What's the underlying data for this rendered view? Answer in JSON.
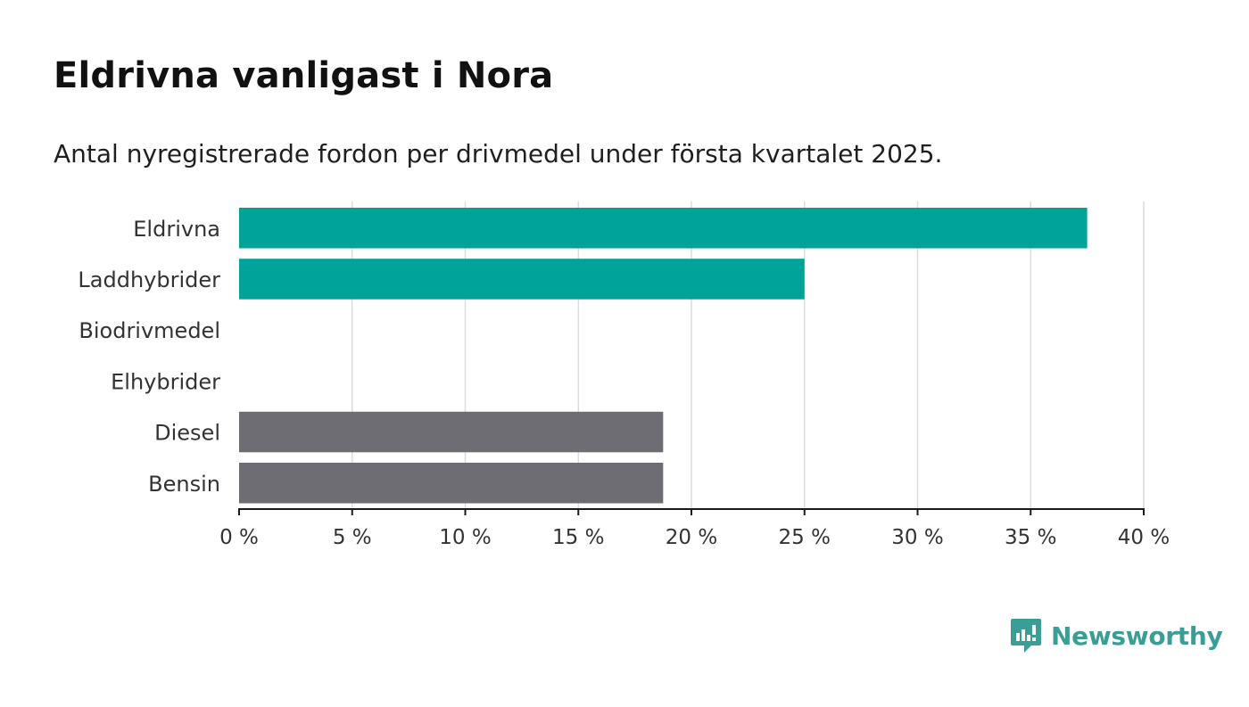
{
  "header": {
    "title": "Eldrivna vanligast i Nora",
    "subtitle": "Antal nyregistrerade fordon per drivmedel under första kvartalet 2025."
  },
  "chart_data": {
    "type": "bar",
    "orientation": "horizontal",
    "categories": [
      "Eldrivna",
      "Laddhybrider",
      "Biodrivmedel",
      "Elhybrider",
      "Diesel",
      "Bensin"
    ],
    "values": [
      37.5,
      25,
      0,
      0,
      18.75,
      18.75
    ],
    "bar_colors": [
      "#00a398",
      "#00a398",
      "#00a398",
      "#00a398",
      "#6e6d73",
      "#6e6d73"
    ],
    "xlim": [
      0,
      40
    ],
    "xticks": [
      0,
      5,
      10,
      15,
      20,
      25,
      30,
      35,
      40
    ],
    "tick_labels": [
      "0 %",
      "5 %",
      "10 %",
      "15 %",
      "20 %",
      "25 %",
      "30 %",
      "35 %",
      "40 %"
    ],
    "grid": true
  },
  "branding": {
    "logo_text": "Newsworthy",
    "logo_icon": "newsworthy-logo-icon",
    "logo_color": "#3a9e97"
  }
}
